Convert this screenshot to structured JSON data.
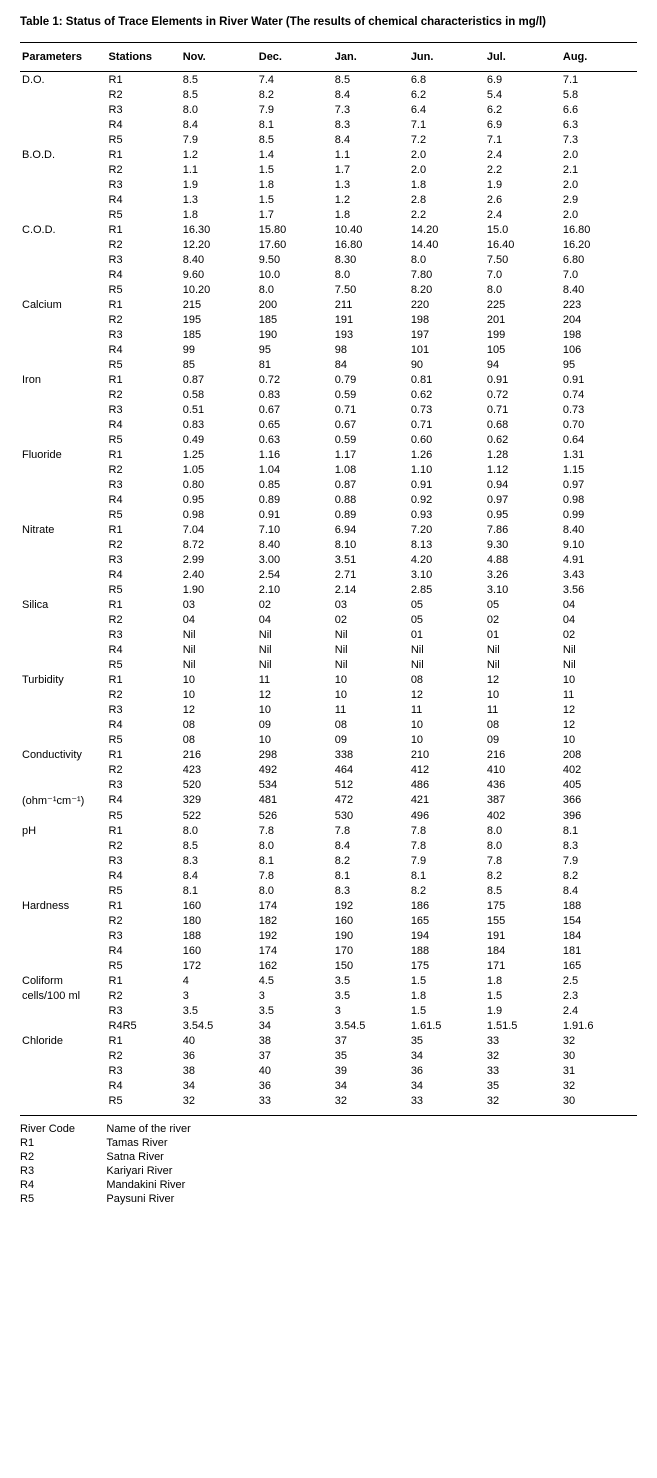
{
  "title": "Table 1: Status of Trace Elements in River Water (The results of chemical characteristics in mg/l)",
  "columns": [
    "Parameters",
    "Stations",
    "Nov.",
    "Dec.",
    "Jan.",
    "Jun.",
    "Jul.",
    "Aug."
  ],
  "parameters": [
    {
      "label": "D.O.",
      "rows": [
        {
          "station": "R1",
          "vals": [
            "8.5",
            "7.4",
            "8.5",
            "6.8",
            "6.9",
            "7.1"
          ]
        },
        {
          "station": "R2",
          "vals": [
            "8.5",
            "8.2",
            "8.4",
            "6.2",
            "5.4",
            "5.8"
          ]
        },
        {
          "station": "R3",
          "vals": [
            "8.0",
            "7.9",
            "7.3",
            "6.4",
            "6.2",
            "6.6"
          ]
        },
        {
          "station": "R4",
          "vals": [
            "8.4",
            "8.1",
            "8.3",
            "7.1",
            "6.9",
            "6.3"
          ]
        },
        {
          "station": "R5",
          "vals": [
            "7.9",
            "8.5",
            "8.4",
            "7.2",
            "7.1",
            "7.3"
          ]
        }
      ]
    },
    {
      "label": "B.O.D.",
      "rows": [
        {
          "station": "R1",
          "vals": [
            "1.2",
            "1.4",
            "1.1",
            "2.0",
            "2.4",
            "2.0"
          ]
        },
        {
          "station": "R2",
          "vals": [
            "1.1",
            "1.5",
            "1.7",
            "2.0",
            "2.2",
            "2.1"
          ]
        },
        {
          "station": "R3",
          "vals": [
            "1.9",
            "1.8",
            "1.3",
            "1.8",
            "1.9",
            "2.0"
          ]
        },
        {
          "station": "R4",
          "vals": [
            "1.3",
            "1.5",
            "1.2",
            "2.8",
            "2.6",
            "2.9"
          ]
        },
        {
          "station": "R5",
          "vals": [
            "1.8",
            "1.7",
            "1.8",
            "2.2",
            "2.4",
            "2.0"
          ]
        }
      ]
    },
    {
      "label": "C.O.D.",
      "rows": [
        {
          "station": "R1",
          "vals": [
            "16.30",
            "15.80",
            "10.40",
            "14.20",
            "15.0",
            "16.80"
          ]
        },
        {
          "station": "R2",
          "vals": [
            "12.20",
            "17.60",
            "16.80",
            "14.40",
            "16.40",
            "16.20"
          ]
        },
        {
          "station": "R3",
          "vals": [
            "8.40",
            "9.50",
            "8.30",
            "8.0",
            "7.50",
            "6.80"
          ]
        },
        {
          "station": "R4",
          "vals": [
            "9.60",
            "10.0",
            "8.0",
            "7.80",
            "7.0",
            "7.0"
          ]
        },
        {
          "station": "R5",
          "vals": [
            "10.20",
            "8.0",
            "7.50",
            "8.20",
            "8.0",
            "8.40"
          ]
        }
      ]
    },
    {
      "label": "Calcium",
      "rows": [
        {
          "station": "R1",
          "vals": [
            "215",
            "200",
            "211",
            "220",
            "225",
            "223"
          ]
        },
        {
          "station": "R2",
          "vals": [
            "195",
            "185",
            "191",
            "198",
            "201",
            "204"
          ]
        },
        {
          "station": "R3",
          "vals": [
            "185",
            "190",
            "193",
            "197",
            "199",
            "198"
          ]
        },
        {
          "station": "R4",
          "vals": [
            "99",
            "95",
            "98",
            "101",
            "105",
            "106"
          ]
        },
        {
          "station": "R5",
          "vals": [
            "85",
            "81",
            "84",
            "90",
            "94",
            "95"
          ]
        }
      ]
    },
    {
      "label": "Iron",
      "rows": [
        {
          "station": "R1",
          "vals": [
            "0.87",
            "0.72",
            "0.79",
            "0.81",
            "0.91",
            "0.91"
          ]
        },
        {
          "station": "R2",
          "vals": [
            "0.58",
            "0.83",
            "0.59",
            "0.62",
            "0.72",
            "0.74"
          ]
        },
        {
          "station": "R3",
          "vals": [
            "0.51",
            "0.67",
            "0.71",
            "0.73",
            "0.71",
            "0.73"
          ]
        },
        {
          "station": "R4",
          "vals": [
            "0.83",
            "0.65",
            "0.67",
            "0.71",
            "0.68",
            "0.70"
          ]
        },
        {
          "station": "R5",
          "vals": [
            "0.49",
            "0.63",
            "0.59",
            "0.60",
            "0.62",
            "0.64"
          ]
        }
      ]
    },
    {
      "label": "Fluoride",
      "rows": [
        {
          "station": "R1",
          "vals": [
            "1.25",
            "1.16",
            "1.17",
            "1.26",
            "1.28",
            "1.31"
          ]
        },
        {
          "station": "R2",
          "vals": [
            "1.05",
            "1.04",
            "1.08",
            "1.10",
            "1.12",
            "1.15"
          ]
        },
        {
          "station": "R3",
          "vals": [
            "0.80",
            "0.85",
            "0.87",
            "0.91",
            "0.94",
            "0.97"
          ]
        },
        {
          "station": "R4",
          "vals": [
            "0.95",
            "0.89",
            "0.88",
            "0.92",
            "0.97",
            "0.98"
          ]
        },
        {
          "station": "R5",
          "vals": [
            "0.98",
            "0.91",
            "0.89",
            "0.93",
            "0.95",
            "0.99"
          ]
        }
      ]
    },
    {
      "label": "Nitrate",
      "rows": [
        {
          "station": "R1",
          "vals": [
            "7.04",
            "7.10",
            "6.94",
            "7.20",
            "7.86",
            "8.40"
          ]
        },
        {
          "station": "R2",
          "vals": [
            "8.72",
            "8.40",
            "8.10",
            "8.13",
            "9.30",
            "9.10"
          ]
        },
        {
          "station": "R3",
          "vals": [
            "2.99",
            "3.00",
            "3.51",
            "4.20",
            "4.88",
            "4.91"
          ]
        },
        {
          "station": "R4",
          "vals": [
            "2.40",
            "2.54",
            "2.71",
            "3.10",
            "3.26",
            "3.43"
          ]
        },
        {
          "station": "R5",
          "vals": [
            "1.90",
            "2.10",
            "2.14",
            "2.85",
            "3.10",
            "3.56"
          ]
        }
      ]
    },
    {
      "label": "Silica",
      "rows": [
        {
          "station": "R1",
          "vals": [
            "03",
            "02",
            "03",
            "05",
            "05",
            "04"
          ]
        },
        {
          "station": "R2",
          "vals": [
            "04",
            "04",
            "02",
            "05",
            "02",
            "04"
          ]
        },
        {
          "station": "R3",
          "vals": [
            "Nil",
            "Nil",
            "Nil",
            "01",
            "01",
            "02"
          ]
        },
        {
          "station": "R4",
          "vals": [
            "Nil",
            "Nil",
            "Nil",
            "Nil",
            "Nil",
            "Nil"
          ]
        },
        {
          "station": "R5",
          "vals": [
            "Nil",
            "Nil",
            "Nil",
            "Nil",
            "Nil",
            "Nil"
          ]
        }
      ]
    },
    {
      "label": "Turbidity",
      "rows": [
        {
          "station": "R1",
          "vals": [
            "10",
            "11",
            "10",
            "08",
            "12",
            "10"
          ]
        },
        {
          "station": "R2",
          "vals": [
            "10",
            "12",
            "10",
            "12",
            "10",
            "11"
          ]
        },
        {
          "station": "R3",
          "vals": [
            "12",
            "10",
            "11",
            "11",
            "11",
            "12"
          ]
        },
        {
          "station": "R4",
          "vals": [
            "08",
            "09",
            "08",
            "10",
            "08",
            "12"
          ]
        },
        {
          "station": "R5",
          "vals": [
            "08",
            "10",
            "09",
            "10",
            "09",
            "10"
          ]
        }
      ]
    },
    {
      "label": "Conductivity",
      "rows": [
        {
          "station": "R1",
          "vals": [
            "216",
            "298",
            "338",
            "210",
            "216",
            "208"
          ]
        },
        {
          "station": "R2",
          "vals": [
            "423",
            "492",
            "464",
            "412",
            "410",
            "402"
          ]
        },
        {
          "station": "R3",
          "vals": [
            "520",
            "534",
            "512",
            "486",
            "436",
            "405"
          ]
        }
      ]
    },
    {
      "label": "(ohm⁻¹cm⁻¹)",
      "rows": [
        {
          "station": "R4",
          "vals": [
            "329",
            "481",
            "472",
            "421",
            "387",
            "366"
          ]
        },
        {
          "station": "R5",
          "vals": [
            "522",
            "526",
            "530",
            "496",
            "402",
            "396"
          ]
        }
      ]
    },
    {
      "label": "pH",
      "rows": [
        {
          "station": "R1",
          "vals": [
            "8.0",
            "7.8",
            "7.8",
            "7.8",
            "8.0",
            "8.1"
          ]
        },
        {
          "station": "R2",
          "vals": [
            "8.5",
            "8.0",
            "8.4",
            "7.8",
            "8.0",
            "8.3"
          ]
        },
        {
          "station": "R3",
          "vals": [
            "8.3",
            "8.1",
            "8.2",
            "7.9",
            "7.8",
            "7.9"
          ]
        },
        {
          "station": "R4",
          "vals": [
            "8.4",
            "7.8",
            "8.1",
            "8.1",
            "8.2",
            "8.2"
          ]
        },
        {
          "station": "R5",
          "vals": [
            "8.1",
            "8.0",
            "8.3",
            "8.2",
            "8.5",
            "8.4"
          ]
        }
      ]
    },
    {
      "label": "Hardness",
      "rows": [
        {
          "station": "R1",
          "vals": [
            "160",
            "174",
            "192",
            "186",
            "175",
            "188"
          ]
        },
        {
          "station": "R2",
          "vals": [
            "180",
            "182",
            "160",
            "165",
            "155",
            "154"
          ]
        },
        {
          "station": "R3",
          "vals": [
            "188",
            "192",
            "190",
            "194",
            "191",
            "184"
          ]
        },
        {
          "station": "R4",
          "vals": [
            "160",
            "174",
            "170",
            "188",
            "184",
            "181"
          ]
        },
        {
          "station": "R5",
          "vals": [
            "172",
            "162",
            "150",
            "175",
            "171",
            "165"
          ]
        }
      ]
    },
    {
      "label": "Coliform",
      "rows": [
        {
          "station": "R1",
          "vals": [
            "4",
            "4.5",
            "3.5",
            "1.5",
            "1.8",
            "2.5"
          ]
        }
      ]
    },
    {
      "label": "cells/100 ml",
      "rows": [
        {
          "station": "R2",
          "vals": [
            "3",
            "3",
            "3.5",
            "1.8",
            "1.5",
            "2.3"
          ]
        },
        {
          "station": "R3",
          "vals": [
            "3.5",
            "3.5",
            "3",
            "1.5",
            "1.9",
            "2.4"
          ]
        },
        {
          "station": "R4R5",
          "vals": [
            "3.54.5",
            "34",
            "3.54.5",
            "1.61.5",
            "1.51.5",
            "1.91.6"
          ]
        }
      ]
    },
    {
      "label": "Chloride",
      "rows": [
        {
          "station": "R1",
          "vals": [
            "40",
            "38",
            "37",
            "35",
            "33",
            "32"
          ]
        },
        {
          "station": "R2",
          "vals": [
            "36",
            "37",
            "35",
            "34",
            "32",
            "30"
          ]
        },
        {
          "station": "R3",
          "vals": [
            "38",
            "40",
            "39",
            "36",
            "33",
            "31"
          ]
        },
        {
          "station": "R4",
          "vals": [
            "34",
            "36",
            "34",
            "34",
            "35",
            "32"
          ]
        },
        {
          "station": "R5",
          "vals": [
            "32",
            "33",
            "32",
            "33",
            "32",
            "30"
          ]
        }
      ]
    }
  ],
  "legend": [
    {
      "code": "River Code",
      "name": "Name of the river"
    },
    {
      "code": "R1",
      "name": "Tamas River"
    },
    {
      "code": "R2",
      "name": "Satna River"
    },
    {
      "code": "R3",
      "name": "Kariyari River"
    },
    {
      "code": "R4",
      "name": "Mandakini River"
    },
    {
      "code": "R5",
      "name": "Paysuni River"
    }
  ]
}
